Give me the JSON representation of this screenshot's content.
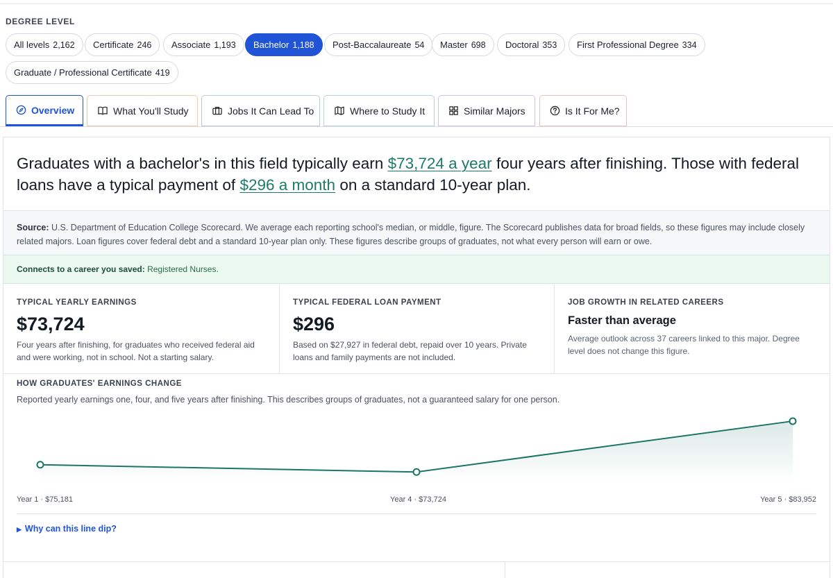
{
  "degree": {
    "label": "DEGREE LEVEL",
    "chips": [
      {
        "name": "All levels",
        "count": "2,162"
      },
      {
        "name": "Certificate",
        "count": "246"
      },
      {
        "name": "Associate",
        "count": "1,193"
      },
      {
        "name": "Bachelor",
        "count": "1,188"
      },
      {
        "name": "Post-Baccalaureate",
        "count": "54"
      },
      {
        "name": "Master",
        "count": "698"
      },
      {
        "name": "Doctoral",
        "count": "353"
      },
      {
        "name": "First Professional Degree",
        "count": "334"
      },
      {
        "name": "Graduate / Professional Certificate",
        "count": "419"
      }
    ],
    "selected": "Bachelor"
  },
  "tabs": [
    {
      "label": "Overview",
      "icon": "compass-icon"
    },
    {
      "label": "What You'll Study",
      "icon": "book-icon"
    },
    {
      "label": "Jobs It Can Lead To",
      "icon": "briefcase-icon"
    },
    {
      "label": "Where to Study It",
      "icon": "map-icon"
    },
    {
      "label": "Similar Majors",
      "icon": "grid-icon"
    },
    {
      "label": "Is It For Me?",
      "icon": "question-icon"
    }
  ],
  "headline": {
    "part1": "Graduates with a bachelor's in this field typically earn ",
    "earnings_link": "$73,724 a year",
    "part2": " four years after finishing. Those with federal loans have a typical payment of ",
    "payment_link": "$296 a month",
    "part3": " on a standard 10-year plan."
  },
  "source": {
    "label": "Source:",
    "text": " U.S. Department of Education College Scorecard. We average each reporting school's median, or middle, figure. The Scorecard publishes data for broad fields, so these figures may include closely related majors. Loan figures cover federal debt and a standard 10-year plan only. These figures describe groups of graduates, not what every person will earn or owe."
  },
  "connect": {
    "label": "Connects to a career you saved:",
    "career": " Registered Nurses."
  },
  "stats": {
    "earnings": {
      "label": "TYPICAL YEARLY EARNINGS",
      "value": "$73,724",
      "desc": "Four years after finishing, for graduates who received federal aid and were working, not in school. Not a starting salary."
    },
    "loan": {
      "label": "TYPICAL FEDERAL LOAN PAYMENT",
      "value": "$296",
      "desc": "Based on $27,927 in federal debt, repaid over 10 years. Private loans and family payments are not included."
    },
    "growth": {
      "label": "JOB GROWTH IN RELATED CAREERS",
      "value": "Faster than average",
      "desc": "Average outlook across 37 careers linked to this major. Degree level does not change this figure."
    }
  },
  "earnings_chart": {
    "title": "HOW GRADUATES' EARNINGS CHANGE",
    "subtitle": "Reported yearly earnings one, four, and five years after finishing. This describes groups of graduates, not a guaranteed salary for one person.",
    "labels": [
      "Year 1 · $75,181",
      "Year 4 · $73,724",
      "Year 5 · $83,952"
    ],
    "line_color": "#1d7566"
  },
  "chart_data": {
    "type": "line",
    "x": [
      1,
      4,
      5
    ],
    "categories": [
      "Year 1",
      "Year 4",
      "Year 5"
    ],
    "values": [
      75181,
      73724,
      83952
    ],
    "title": "HOW GRADUATES' EARNINGS CHANGE",
    "xlabel": "",
    "ylabel": "",
    "grid": false,
    "legend": "none"
  },
  "why": {
    "label": "Why can this line dip?"
  }
}
